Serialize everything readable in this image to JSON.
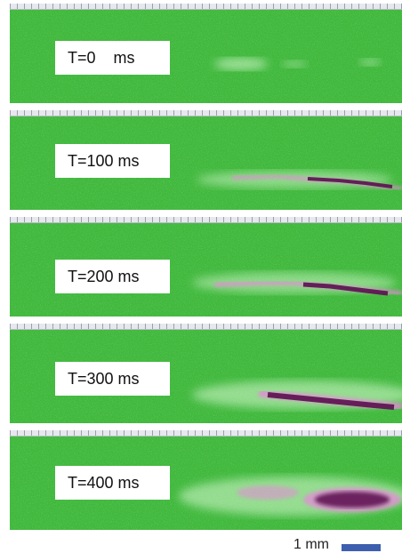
{
  "frames": [
    {
      "label": "T=0    ms"
    },
    {
      "label": "T=100 ms"
    },
    {
      "label": "T=200 ms"
    },
    {
      "label": "T=300 ms"
    },
    {
      "label": "T=400 ms"
    }
  ],
  "scale_bar": {
    "label": "1 mm",
    "color": "#3e5fae"
  },
  "colors": {
    "background": "#3fb83a",
    "signal": "#7a1f6e",
    "halo": "#d6f5cf"
  }
}
